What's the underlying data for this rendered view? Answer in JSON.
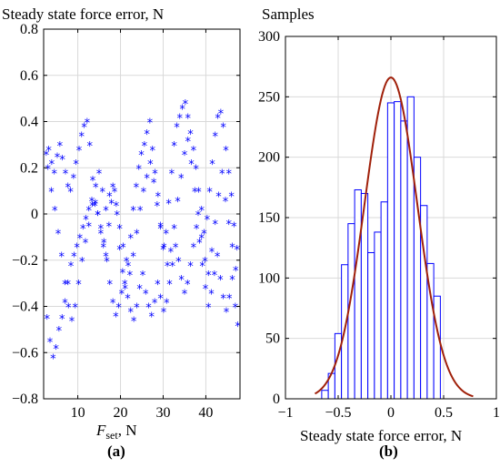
{
  "chart_data": [
    {
      "type": "scatter",
      "title": "Steady state force error, N",
      "xlabel_main": "F",
      "xlabel_sub": "set",
      "xlabel_unit": ", N",
      "ylabel": "",
      "xlim": [
        2,
        48
      ],
      "ylim": [
        -0.8,
        0.8
      ],
      "xticks": [
        "10",
        "20",
        "30",
        "40"
      ],
      "xtick_values": [
        10,
        20,
        30,
        40
      ],
      "yticks": [
        "0.8",
        "0.6",
        "0.4",
        "0.2",
        "0",
        "−0.2",
        "−0.4",
        "−0.6",
        "−0.8"
      ],
      "ytick_values": [
        0.8,
        0.6,
        0.4,
        0.2,
        0,
        -0.2,
        -0.4,
        -0.6,
        -0.8
      ],
      "grid": true,
      "marker": "*",
      "marker_color": "#0000ff",
      "panel_label": "(a)",
      "series": [
        {
          "x": [
            2.6,
            3.2,
            3.9,
            4.5,
            5.2,
            5.8,
            6.4,
            7.1,
            7.7,
            8.3,
            9.0,
            9.6,
            10.3,
            10.9,
            11.5,
            12.2,
            12.8,
            13.5,
            14.1,
            14.7,
            15.4,
            16.0,
            16.6,
            17.3,
            17.9,
            18.6,
            19.2,
            19.8,
            20.5,
            21.1,
            21.8,
            22.4,
            23.0,
            23.7,
            24.3,
            24.9,
            25.6,
            26.2,
            26.9,
            27.5,
            28.1,
            28.8,
            29.4,
            30.0,
            30.7,
            31.3,
            32.0,
            32.6,
            33.2,
            33.9,
            34.5,
            35.2,
            35.8,
            36.4,
            37.1,
            37.7,
            38.3,
            39.0,
            39.6,
            40.3,
            40.9,
            41.5,
            42.2,
            42.8,
            43.5,
            44.1,
            44.7,
            45.4,
            46.0,
            46.6,
            47.3,
            2.8,
            3.5,
            4.2,
            4.9,
            5.6,
            6.3,
            7.0,
            7.7,
            8.4,
            9.1,
            9.8,
            10.5,
            11.2,
            11.9,
            12.6,
            13.3,
            14.0,
            14.7,
            15.4,
            16.1,
            16.8,
            17.5,
            18.2,
            18.9,
            19.6,
            20.3,
            21.0,
            21.7,
            22.4,
            23.1,
            23.8,
            24.5,
            25.2,
            25.9,
            26.6,
            27.3,
            28.0,
            28.7,
            29.4,
            30.1,
            30.8,
            31.5,
            32.2,
            32.9,
            33.6,
            34.3,
            35.0,
            35.7,
            36.4,
            37.1,
            37.8,
            38.5,
            39.2,
            39.9,
            40.6,
            41.3,
            42.0,
            42.7,
            43.4,
            44.1,
            44.8,
            45.5,
            46.2,
            46.9,
            47.5,
            3.0,
            3.8,
            4.6,
            5.4,
            6.2,
            7.0,
            7.8,
            8.6,
            9.4,
            10.2,
            11.0,
            11.8,
            12.6,
            13.4,
            14.2,
            15.0,
            15.8,
            16.6,
            17.4,
            18.2,
            19.0,
            19.8,
            20.6,
            21.4,
            22.2,
            23.0,
            23.8,
            24.6,
            25.4,
            26.2,
            27.0,
            27.8,
            28.6,
            29.4,
            30.2,
            31.0,
            31.8,
            32.6,
            33.4,
            34.2,
            35.0,
            35.8,
            36.6,
            37.4,
            38.2,
            39.0,
            39.8,
            40.6,
            41.4,
            42.2,
            43.0,
            43.8,
            44.6,
            45.4,
            46.2,
            47.0
          ],
          "y": [
            0.26,
            0.28,
            0.22,
            0.18,
            0.25,
            0.3,
            0.24,
            0.18,
            0.12,
            0.1,
            0.16,
            0.22,
            0.28,
            0.34,
            0.38,
            0.4,
            0.3,
            0.15,
            0.05,
            0.0,
            -0.08,
            -0.14,
            -0.18,
            -0.05,
            0.05,
            0.1,
            0.0,
            -0.15,
            -0.25,
            -0.32,
            -0.22,
            -0.1,
            0.02,
            0.12,
            0.2,
            0.26,
            0.3,
            0.35,
            0.4,
            0.28,
            0.18,
            0.08,
            -0.05,
            -0.15,
            -0.08,
            0.05,
            0.18,
            0.3,
            0.38,
            0.42,
            0.46,
            0.48,
            0.42,
            0.35,
            0.28,
            0.2,
            0.1,
            0.02,
            -0.08,
            -0.02,
            0.1,
            0.22,
            0.34,
            0.42,
            0.44,
            0.38,
            0.28,
            0.18,
            0.08,
            -0.05,
            -0.15,
            -0.45,
            -0.55,
            -0.62,
            -0.58,
            -0.5,
            -0.45,
            -0.38,
            -0.3,
            -0.22,
            -0.18,
            -0.14,
            -0.1,
            -0.06,
            -0.02,
            0.02,
            0.06,
            0.04,
            0.0,
            -0.06,
            -0.12,
            -0.2,
            -0.3,
            -0.38,
            -0.44,
            -0.4,
            -0.34,
            -0.3,
            -0.36,
            -0.42,
            -0.46,
            -0.4,
            -0.32,
            -0.26,
            -0.34,
            -0.4,
            -0.44,
            -0.38,
            -0.3,
            -0.36,
            -0.42,
            -0.38,
            -0.3,
            -0.22,
            -0.14,
            -0.2,
            -0.28,
            -0.34,
            -0.3,
            -0.22,
            -0.14,
            -0.06,
            -0.12,
            -0.22,
            -0.32,
            -0.4,
            -0.34,
            -0.26,
            -0.18,
            -0.28,
            -0.36,
            -0.42,
            -0.36,
            -0.28,
            -0.4,
            -0.48,
            0.2,
            0.1,
            0.02,
            -0.08,
            -0.18,
            -0.3,
            -0.4,
            -0.46,
            -0.4,
            -0.3,
            -0.2,
            -0.12,
            -0.05,
            0.04,
            0.12,
            0.18,
            0.1,
            0.02,
            0.08,
            0.12,
            0.04,
            -0.06,
            -0.14,
            -0.2,
            -0.26,
            -0.18,
            -0.08,
            0.02,
            0.1,
            0.16,
            0.22,
            0.14,
            0.04,
            -0.06,
            -0.14,
            -0.22,
            -0.16,
            -0.06,
            0.06,
            0.16,
            0.26,
            0.32,
            0.22,
            0.1,
            0.0,
            -0.1,
            -0.2,
            -0.26,
            -0.16,
            -0.04,
            0.08,
            0.18,
            0.06,
            -0.04,
            -0.14,
            -0.24
          ]
        }
      ]
    },
    {
      "type": "bar",
      "title": "Samples",
      "xlabel": "Steady state force error, N",
      "ylabel": "",
      "xlim": [
        -1,
        1
      ],
      "ylim": [
        0,
        300
      ],
      "xticks": [
        "−1",
        "−0.5",
        "0",
        "0.5",
        "1"
      ],
      "xtick_values": [
        -1,
        -0.5,
        0,
        0.5,
        1
      ],
      "yticks": [
        "300",
        "250",
        "200",
        "150",
        "100",
        "50",
        "0"
      ],
      "ytick_values": [
        300,
        250,
        200,
        150,
        100,
        50,
        0
      ],
      "grid": true,
      "bar_edge_color": "#0000ff",
      "bar_fill_color": "#ffffff",
      "curve_color": "#a0200a",
      "bin_width": 0.0625,
      "bin_centers": [
        -0.625,
        -0.5625,
        -0.5,
        -0.4375,
        -0.375,
        -0.3125,
        -0.25,
        -0.1875,
        -0.125,
        -0.0625,
        0.0,
        0.0625,
        0.125,
        0.1875,
        0.25,
        0.3125,
        0.375,
        0.4375,
        0.5
      ],
      "values": [
        7,
        21,
        54,
        111,
        145,
        173,
        170,
        121,
        138,
        163,
        245,
        246,
        230,
        250,
        200,
        160,
        112,
        85,
        0
      ],
      "curve": {
        "label": "",
        "mean": 0.0,
        "std": 0.25,
        "peak": 266,
        "x_range": [
          -0.72,
          0.78
        ]
      },
      "panel_label": "(b)"
    }
  ]
}
